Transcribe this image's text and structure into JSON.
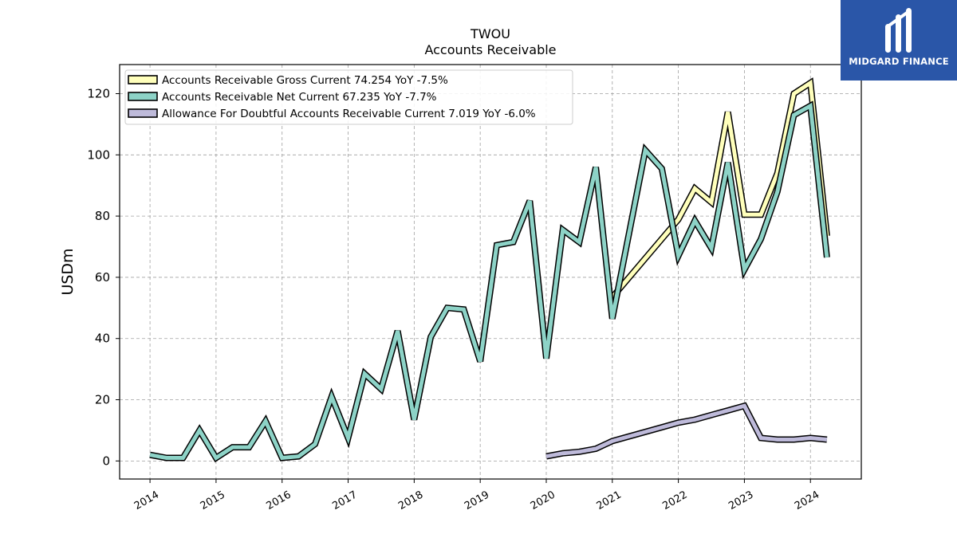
{
  "brand": {
    "name": "MIDGARD FINANCE",
    "logo_icon": "midgard-logo-icon",
    "background": "#2a56a8"
  },
  "chart_data": {
    "type": "line",
    "title": "TWOU",
    "subtitle": "Accounts Receivable",
    "xlabel": "",
    "ylabel": "USDm",
    "xlim": [
      2013.54,
      2024.77
    ],
    "ylim": [
      -5.9,
      129.5
    ],
    "x_ticks": [
      "2014",
      "2015",
      "2016",
      "2017",
      "2018",
      "2019",
      "2020",
      "2021",
      "2022",
      "2023",
      "2024"
    ],
    "y_ticks": [
      0,
      20,
      40,
      60,
      80,
      100,
      120
    ],
    "grid": true,
    "legend_position": "top-left",
    "series": [
      {
        "name": "Accounts Receivable Gross Current",
        "legend_label": "Accounts Receivable Gross Current  74.254 YoY -7.5%",
        "color": "#ffffbb",
        "x": [
          "2021-01-01",
          "2022-01-01",
          "2022-04-01",
          "2022-07-01",
          "2022-10-01",
          "2023-01-01",
          "2023-04-01",
          "2023-07-01",
          "2023-10-01",
          "2024-01-01",
          "2024-04-01"
        ],
        "y": [
          53.5,
          78.9,
          89.0,
          84.5,
          114.0,
          80.5,
          80.5,
          94.0,
          120.0,
          123.5,
          73.5
        ]
      },
      {
        "name": "Accounts Receivable Net Current",
        "legend_label": "Accounts Receivable Net Current  67.235 YoY -7.7%",
        "color": "#8dd3c7",
        "x": [
          "2014-01-01",
          "2014-04-01",
          "2014-07-01",
          "2014-10-01",
          "2015-01-01",
          "2015-04-01",
          "2015-07-01",
          "2015-10-01",
          "2016-01-01",
          "2016-04-01",
          "2016-07-01",
          "2016-10-01",
          "2017-01-01",
          "2017-04-01",
          "2017-07-01",
          "2017-10-01",
          "2018-01-01",
          "2018-04-01",
          "2018-07-01",
          "2018-10-01",
          "2019-01-01",
          "2019-04-01",
          "2019-07-01",
          "2019-10-01",
          "2020-01-01",
          "2020-04-01",
          "2020-07-01",
          "2020-10-01",
          "2021-01-01",
          "2021-04-01",
          "2021-07-01",
          "2021-10-01",
          "2022-01-01",
          "2022-04-01",
          "2022-07-01",
          "2022-10-01",
          "2023-01-01",
          "2023-04-01",
          "2023-07-01",
          "2023-10-01",
          "2024-01-01",
          "2024-04-01"
        ],
        "y": [
          2.0,
          1.0,
          1.0,
          10.0,
          1.0,
          4.5,
          4.5,
          13.0,
          1.0,
          1.5,
          5.5,
          21.0,
          7.5,
          28.5,
          23.5,
          42.5,
          13.5,
          40.5,
          50.0,
          49.5,
          32.5,
          70.5,
          71.5,
          85.0,
          33.5,
          75.5,
          71.5,
          96.0,
          46.5,
          74.0,
          101.5,
          95.5,
          67.0,
          78.5,
          69.5,
          97.5,
          62.5,
          72.5,
          88.0,
          113.0,
          116.0,
          66.5
        ]
      },
      {
        "name": "Allowance For Doubtful Accounts Receivable Current",
        "legend_label": "Allowance For Doubtful Accounts Receivable Current  7.019 YoY -6.0%",
        "color": "#bebada",
        "x": [
          "2020-01-01",
          "2020-04-01",
          "2020-07-01",
          "2020-10-01",
          "2021-01-01",
          "2021-04-01",
          "2021-07-01",
          "2021-10-01",
          "2022-01-01",
          "2022-04-01",
          "2022-07-01",
          "2022-10-01",
          "2023-01-01",
          "2023-04-01",
          "2023-07-01",
          "2023-10-01",
          "2024-01-01",
          "2024-04-01"
        ],
        "y": [
          1.5,
          2.5,
          3.0,
          4.0,
          6.5,
          8.0,
          9.5,
          11.0,
          12.5,
          13.5,
          15.0,
          16.5,
          18.0,
          7.5,
          7.0,
          7.0,
          7.5,
          7.0
        ]
      }
    ]
  }
}
